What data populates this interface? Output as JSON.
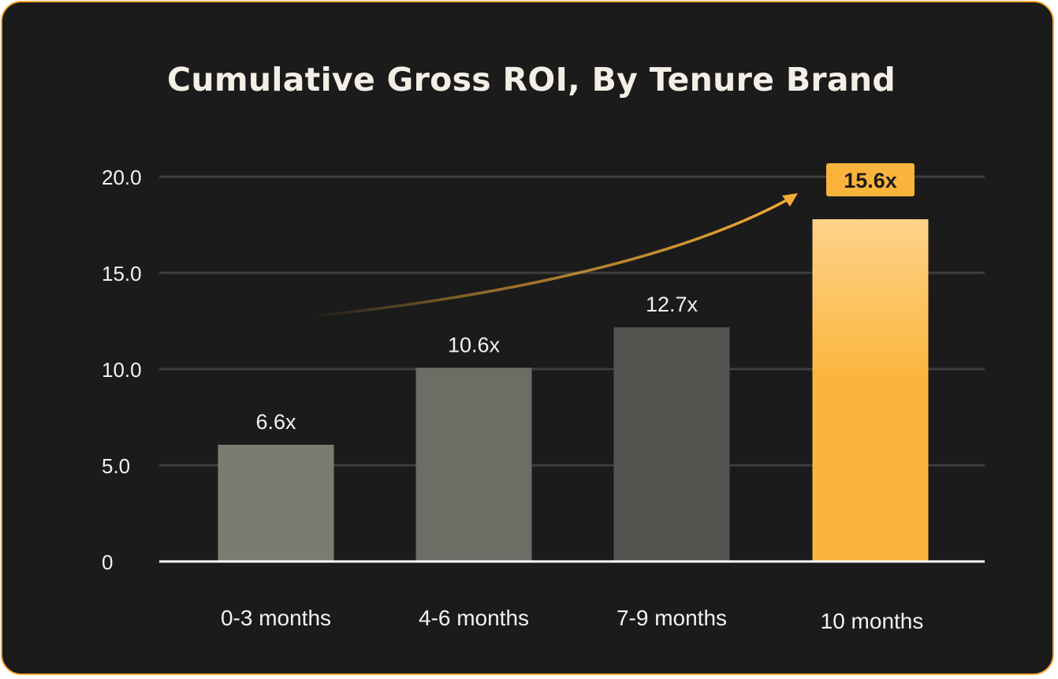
{
  "chart_data": {
    "type": "bar",
    "title": "Cumulative Gross ROI, By Tenure Brand",
    "categories": [
      "0-3 months",
      "4-6 months",
      "7-9 months",
      "10 months"
    ],
    "values": [
      6.6,
      10.6,
      12.7,
      15.6
    ],
    "data_labels": [
      "6.6x",
      "10.6x",
      "12.7x",
      "15.6x"
    ],
    "y_ticks": [
      "0",
      "5.0",
      "10.0",
      "15.0",
      "20.0"
    ],
    "ylim": [
      0,
      20
    ],
    "grid": true,
    "highlight_index": 3,
    "colors": {
      "bars": [
        "#7b7c70",
        "#6c6d65",
        "#535450",
        "#fbb53c"
      ],
      "highlight_top": "#fdd38a",
      "highlight_badge": "#fbb43b",
      "arrow": "#f4ac35",
      "background": "#1b1b1b",
      "border": "#f4aa33",
      "grid": "#3e3e3e",
      "axis": "#ffffff"
    }
  }
}
